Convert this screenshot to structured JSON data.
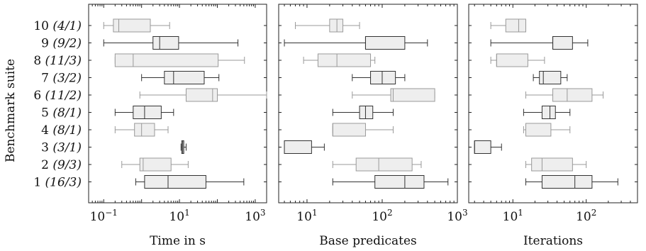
{
  "chart_data": {
    "type": "boxplot",
    "ylabel": "Benchmark suite",
    "rows": [
      {
        "name": "10",
        "count": "(4/1)"
      },
      {
        "name": "9",
        "count": "(9/2)"
      },
      {
        "name": "8",
        "count": "(11/3)"
      },
      {
        "name": "7",
        "count": "(3/2)"
      },
      {
        "name": "6",
        "count": "(11/2)"
      },
      {
        "name": "5",
        "count": "(8/1)"
      },
      {
        "name": "4",
        "count": "(8/1)"
      },
      {
        "name": "3",
        "count": "(3/1)"
      },
      {
        "name": "2",
        "count": "(9/3)"
      },
      {
        "name": "1",
        "count": "(16/3)"
      }
    ],
    "colors": {
      "dark": "#333333",
      "light": "#999999",
      "fill": "#eeeeee"
    },
    "panels": [
      {
        "xlabel": "Time in s",
        "scale": "log",
        "xlim": [
          0.04,
          2000
        ],
        "ticks": [
          {
            "value": 0.1,
            "base": "10",
            "exp": "−1"
          },
          {
            "value": 10,
            "base": "10",
            "exp": "1"
          },
          {
            "value": 1000,
            "base": "10",
            "exp": "3"
          }
        ],
        "boxes": [
          {
            "style": "light",
            "min": 0.1,
            "q1": 0.18,
            "median": 0.25,
            "q3": 1.7,
            "max": 5.5
          },
          {
            "style": "dark",
            "min": 0.1,
            "q1": 2.0,
            "median": 3.0,
            "q3": 9.5,
            "max": 350
          },
          {
            "style": "light",
            "min": 0.2,
            "q1": 0.2,
            "median": 0.6,
            "q3": 105,
            "max": 520
          },
          {
            "style": "dark",
            "min": 1.0,
            "q1": 4.0,
            "median": 7.0,
            "q3": 45,
            "max": 110
          },
          {
            "style": "light",
            "min": 0.9,
            "q1": 15,
            "median": 75,
            "q3": 100,
            "max": 2000
          },
          {
            "style": "dark",
            "min": 0.2,
            "q1": 0.6,
            "median": 1.2,
            "q3": 3.3,
            "max": 7.0
          },
          {
            "style": "light",
            "min": 0.2,
            "q1": 0.65,
            "median": 1.0,
            "q3": 2.2,
            "max": 5.0
          },
          {
            "style": "dark",
            "min": 11,
            "q1": 11.5,
            "median": 12.2,
            "q3": 13.0,
            "max": 15
          },
          {
            "style": "light",
            "min": 0.3,
            "q1": 0.9,
            "median": 1.1,
            "q3": 6.0,
            "max": 17
          },
          {
            "style": "dark",
            "min": 0.7,
            "q1": 1.2,
            "median": 5.0,
            "q3": 50,
            "max": 500
          }
        ]
      },
      {
        "xlabel": "Base predicates",
        "scale": "log",
        "xlim": [
          4.2,
          1000
        ],
        "ticks": [
          {
            "value": 10,
            "base": "10",
            "exp": "1"
          },
          {
            "value": 100,
            "base": "10",
            "exp": "2"
          },
          {
            "value": 1000,
            "base": "10",
            "exp": "3"
          }
        ],
        "boxes": [
          {
            "style": "light",
            "min": 7,
            "q1": 20,
            "median": 25,
            "q3": 30,
            "max": 50
          },
          {
            "style": "dark",
            "min": 5,
            "q1": 60,
            "median": 60,
            "q3": 200,
            "max": 400
          },
          {
            "style": "light",
            "min": 9,
            "q1": 14,
            "median": 25,
            "q3": 70,
            "max": 80
          },
          {
            "style": "dark",
            "min": 40,
            "q1": 70,
            "median": 100,
            "q3": 150,
            "max": 200
          },
          {
            "style": "light",
            "min": 40,
            "q1": 130,
            "median": 140,
            "q3": 500,
            "max": 500
          },
          {
            "style": "dark",
            "min": 22,
            "q1": 50,
            "median": 60,
            "q3": 75,
            "max": 140
          },
          {
            "style": "light",
            "min": 22,
            "q1": 22,
            "median": 22,
            "q3": 60,
            "max": 140
          },
          {
            "style": "dark",
            "min": 5,
            "q1": 5,
            "median": 5,
            "q3": 11.5,
            "max": 17
          },
          {
            "style": "light",
            "min": 22,
            "q1": 45,
            "median": 90,
            "q3": 250,
            "max": 330
          },
          {
            "style": "dark",
            "min": 22,
            "q1": 80,
            "median": 200,
            "q3": 360,
            "max": 750
          }
        ]
      },
      {
        "xlabel": "Iterations",
        "scale": "log",
        "xlim": [
          2.5,
          500
        ],
        "ticks": [
          {
            "value": 10,
            "base": "10",
            "exp": "1"
          },
          {
            "value": 100,
            "base": "10",
            "exp": "2"
          }
        ],
        "boxes": [
          {
            "style": "light",
            "min": 5,
            "q1": 8,
            "median": 12,
            "q3": 15,
            "max": 15
          },
          {
            "style": "dark",
            "min": 5,
            "q1": 35,
            "median": 35,
            "q3": 65,
            "max": 105
          },
          {
            "style": "light",
            "min": 5,
            "q1": 6,
            "median": 6,
            "q3": 16,
            "max": 27
          },
          {
            "style": "dark",
            "min": 19,
            "q1": 23,
            "median": 26,
            "q3": 45,
            "max": 55
          },
          {
            "style": "light",
            "min": 15,
            "q1": 35,
            "median": 55,
            "q3": 120,
            "max": 170
          },
          {
            "style": "dark",
            "min": 14,
            "q1": 25,
            "median": 32,
            "q3": 38,
            "max": 60
          },
          {
            "style": "light",
            "min": 14,
            "q1": 15,
            "median": 15,
            "q3": 33,
            "max": 60
          },
          {
            "style": "dark",
            "min": 3,
            "q1": 3,
            "median": 3,
            "q3": 5,
            "max": 7
          },
          {
            "style": "light",
            "min": 15,
            "q1": 18,
            "median": 25,
            "q3": 65,
            "max": 100
          },
          {
            "style": "dark",
            "min": 15,
            "q1": 25,
            "median": 70,
            "q3": 120,
            "max": 270
          }
        ]
      }
    ]
  }
}
